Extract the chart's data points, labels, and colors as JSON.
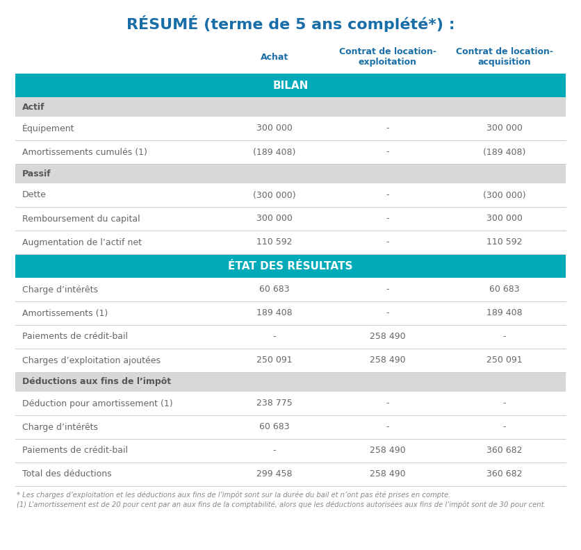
{
  "title": "RÉSUMÉ (terme de 5 ans complété*) :",
  "title_color": "#1a6ea8",
  "header_text_color": "#1a6ea8",
  "teal_color": "#00aab8",
  "teal_text_color": "#ffffff",
  "section_bg_color": "#d8d8d8",
  "section_text_color": "#555555",
  "data_text_color": "#666666",
  "divider_color": "#cccccc",
  "col_header": [
    "Achat",
    "Contrat de location-\nexploitation",
    "Contrat de location-\nacquisition"
  ],
  "rows": [
    {
      "type": "teal_header",
      "label": "BILAN",
      "col1": "",
      "col2": "",
      "col3": ""
    },
    {
      "type": "section",
      "label": "Actif",
      "col1": "",
      "col2": "",
      "col3": ""
    },
    {
      "type": "data",
      "label": "Équipement",
      "col1": "300 000",
      "col2": "-",
      "col3": "300 000"
    },
    {
      "type": "data",
      "label": "Amortissements cumulés (1)",
      "col1": "(189 408)",
      "col2": "-",
      "col3": "(189 408)"
    },
    {
      "type": "section",
      "label": "Passif",
      "col1": "",
      "col2": "",
      "col3": ""
    },
    {
      "type": "data",
      "label": "Dette",
      "col1": "(300 000)",
      "col2": "-",
      "col3": "(300 000)"
    },
    {
      "type": "data",
      "label": "Remboursement du capital",
      "col1": "300 000",
      "col2": "-",
      "col3": "300 000"
    },
    {
      "type": "data",
      "label": "Augmentation de l’actif net",
      "col1": "110 592",
      "col2": "-",
      "col3": "110 592"
    },
    {
      "type": "teal_header",
      "label": "ÉTAT DES RÉSULTATS",
      "col1": "",
      "col2": "",
      "col3": ""
    },
    {
      "type": "data",
      "label": "Charge d’intérêts",
      "col1": "60 683",
      "col2": "-",
      "col3": "60 683"
    },
    {
      "type": "data",
      "label": "Amortissements (1)",
      "col1": "189 408",
      "col2": "-",
      "col3": "189 408"
    },
    {
      "type": "data",
      "label": "Paiements de crédit-bail",
      "col1": "-",
      "col2": "258 490",
      "col3": "-"
    },
    {
      "type": "data",
      "label": "Charges d’exploitation ajoutées",
      "col1": "250 091",
      "col2": "258 490",
      "col3": "250 091"
    },
    {
      "type": "section",
      "label": "Déductions aux fins de l’impôt",
      "col1": "",
      "col2": "",
      "col3": ""
    },
    {
      "type": "data",
      "label": "Déduction pour amortissement (1)",
      "col1": "238 775",
      "col2": "-",
      "col3": "-"
    },
    {
      "type": "data",
      "label": "Charge d’intérêts",
      "col1": "60 683",
      "col2": "-",
      "col3": "-"
    },
    {
      "type": "data",
      "label": "Paiements de crédit-bail",
      "col1": "-",
      "col2": "258 490",
      "col3": "360 682"
    },
    {
      "type": "data",
      "label": "Total des déductions",
      "col1": "299 458",
      "col2": "258 490",
      "col3": "360 682"
    }
  ],
  "footnote1": "* Les charges d’exploitation et les déductions aux fins de l’impôt sont sur la durée du bail et n’ont pas été prises en compte.",
  "footnote2": "(1) L’amortissement est de 20 pour cent par an aux fins de la comptabilité, alors que les déductions autorisées aux fins de l’impôt sont de 30 pour cent."
}
